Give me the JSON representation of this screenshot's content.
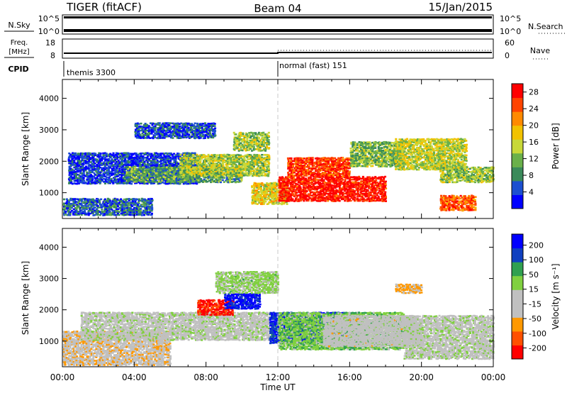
{
  "header": {
    "left_title": "TIGER (fitACF)",
    "center_title": "Beam 04",
    "right_title": "15/Jan/2015"
  },
  "status_panel": {
    "nsky_label": "N.Sky",
    "nsky_ticks": [
      "10^5",
      "10^0"
    ],
    "nsearch_label": "N.Search",
    "nsearch_ticks": [
      "10^5",
      "10^0"
    ],
    "freq_label": "Freq.",
    "freq_unit": "[MHz]",
    "freq_ticks": [
      "18",
      "8"
    ],
    "nave_label": "Nave",
    "nave_ticks": [
      "60",
      "0"
    ],
    "cpid_label": "CPID",
    "cpid_segments": [
      {
        "label": "themis 3300",
        "start_hour": 0,
        "end_hour": 12
      },
      {
        "label": "normal (fast) 151",
        "start_hour": 12,
        "end_hour": 24
      }
    ]
  },
  "x_axis": {
    "title": "Time UT",
    "tick_labels": [
      "00:00",
      "04:00",
      "08:00",
      "12:00",
      "16:00",
      "20:00",
      "00:00"
    ],
    "range_hours": [
      0,
      24
    ]
  },
  "chart_data": [
    {
      "type": "heatmap",
      "panel": "power",
      "ylabel": "Slant Range [km]",
      "ylim": [
        180,
        4600
      ],
      "yticks": [
        "4000",
        "3000",
        "2000",
        "1000"
      ],
      "ytick_values": [
        4000,
        3000,
        2000,
        1000
      ],
      "colorbar_label": "Power [dB]",
      "colorbar_ticks": [
        "28",
        "24",
        "20",
        "16",
        "12",
        "8",
        "4"
      ],
      "colorbar_tick_values": [
        28,
        24,
        20,
        16,
        12,
        8,
        4
      ],
      "colorbar_range": [
        0,
        30
      ],
      "colormap": [
        "#0000ff",
        "#1c4fd0",
        "#3a8a5a",
        "#6ab04a",
        "#c8d838",
        "#f2c200",
        "#ff8a00",
        "#ff4400",
        "#ff0000"
      ],
      "echo_regions": [
        {
          "t0": 0.3,
          "t1": 7.5,
          "r0": 1250,
          "r1": 2250,
          "power": 4
        },
        {
          "t0": 3.5,
          "t1": 10.0,
          "r0": 1300,
          "r1": 1800,
          "power": 10
        },
        {
          "t0": 6.5,
          "t1": 11.5,
          "r0": 1500,
          "r1": 2200,
          "power": 14
        },
        {
          "t0": 4.0,
          "t1": 8.5,
          "r0": 2700,
          "r1": 3200,
          "power": 5
        },
        {
          "t0": 9.5,
          "t1": 11.5,
          "r0": 2300,
          "r1": 2900,
          "power": 13
        },
        {
          "t0": 10.5,
          "t1": 12.5,
          "r0": 600,
          "r1": 1300,
          "power": 17
        },
        {
          "t0": 12.0,
          "t1": 18.0,
          "r0": 700,
          "r1": 1500,
          "power": 28
        },
        {
          "t0": 12.5,
          "t1": 16.0,
          "r0": 1500,
          "r1": 2100,
          "power": 26
        },
        {
          "t0": 16.0,
          "t1": 19.0,
          "r0": 1800,
          "r1": 2600,
          "power": 12
        },
        {
          "t0": 18.5,
          "t1": 22.5,
          "r0": 1700,
          "r1": 2700,
          "power": 15
        },
        {
          "t0": 21.0,
          "t1": 24.0,
          "r0": 1300,
          "r1": 1800,
          "power": 13
        },
        {
          "t0": 21.0,
          "t1": 23.0,
          "r0": 400,
          "r1": 900,
          "power": 24
        },
        {
          "t0": 0.0,
          "t1": 5.0,
          "r0": 250,
          "r1": 800,
          "power": 6
        }
      ]
    },
    {
      "type": "heatmap",
      "panel": "velocity",
      "ylabel": "Slant Range [km]",
      "ylim": [
        180,
        4600
      ],
      "yticks": [
        "4000",
        "3000",
        "2000",
        "1000"
      ],
      "ytick_values": [
        4000,
        3000,
        2000,
        1000
      ],
      "colorbar_label": "Velocity [m s⁻¹]",
      "colorbar_ticks": [
        "200",
        "100",
        "50",
        "15",
        "-15",
        "-50",
        "-100",
        "-200"
      ],
      "colorbar_tick_values": [
        200,
        100,
        50,
        15,
        -15,
        -50,
        -100,
        -200
      ],
      "colorbar_range": [
        -250,
        250
      ],
      "colormap": [
        "#ff0000",
        "#ff5000",
        "#ff9800",
        "#c0c0c0",
        "#c0c0c0",
        "#80d040",
        "#30a050",
        "#1040c0",
        "#0000ff"
      ],
      "echo_regions": [
        {
          "t0": 0.0,
          "t1": 6.0,
          "r0": 200,
          "r1": 1300,
          "velocity": -60
        },
        {
          "t0": 1.0,
          "t1": 11.5,
          "r0": 1000,
          "r1": 1900,
          "velocity": 0
        },
        {
          "t0": 7.5,
          "t1": 9.5,
          "r0": 1800,
          "r1": 2300,
          "velocity": -220
        },
        {
          "t0": 9.0,
          "t1": 11.0,
          "r0": 2000,
          "r1": 2500,
          "velocity": 210
        },
        {
          "t0": 11.5,
          "t1": 16.5,
          "r0": 900,
          "r1": 1900,
          "velocity": 180
        },
        {
          "t0": 12.0,
          "t1": 19.0,
          "r0": 700,
          "r1": 1900,
          "velocity": 60
        },
        {
          "t0": 14.5,
          "t1": 20.0,
          "r0": 800,
          "r1": 1800,
          "velocity": -40
        },
        {
          "t0": 19.0,
          "t1": 24.0,
          "r0": 400,
          "r1": 1800,
          "velocity": 0
        },
        {
          "t0": 8.5,
          "t1": 12.0,
          "r0": 2500,
          "r1": 3200,
          "velocity": 40
        },
        {
          "t0": 18.5,
          "t1": 20.0,
          "r0": 2500,
          "r1": 2800,
          "velocity": -90
        }
      ]
    }
  ]
}
